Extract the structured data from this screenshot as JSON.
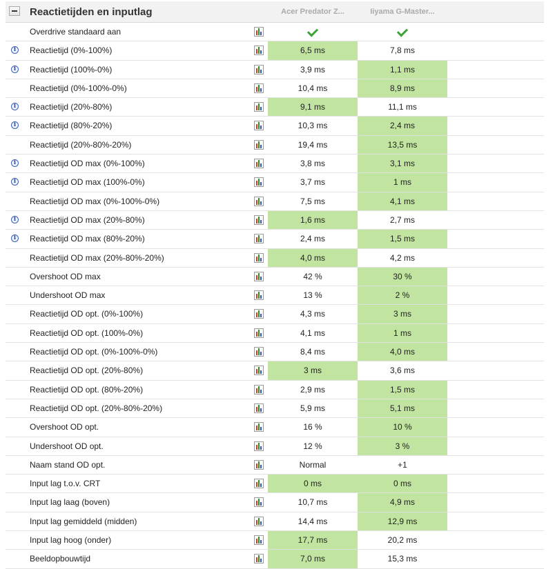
{
  "section": {
    "title": "Reactietijden en inputlag",
    "columns": [
      "Acer Predator Z...",
      "Iiyama G-Master..."
    ]
  },
  "rows": [
    {
      "label": "Overdrive standaard aan",
      "info": false,
      "a": "",
      "b": "",
      "a_check": true,
      "b_check": true,
      "best": ""
    },
    {
      "label": "Reactietijd (0%-100%)",
      "info": true,
      "a": "6,5 ms",
      "b": "7,8 ms",
      "best": "a"
    },
    {
      "label": "Reactietijd (100%-0%)",
      "info": true,
      "a": "3,9 ms",
      "b": "1,1 ms",
      "best": "b"
    },
    {
      "label": "Reactietijd (0%-100%-0%)",
      "info": false,
      "a": "10,4 ms",
      "b": "8,9 ms",
      "best": "b"
    },
    {
      "label": "Reactietijd (20%-80%)",
      "info": true,
      "a": "9,1 ms",
      "b": "11,1 ms",
      "best": "a"
    },
    {
      "label": "Reactietijd (80%-20%)",
      "info": true,
      "a": "10,3 ms",
      "b": "2,4 ms",
      "best": "b"
    },
    {
      "label": "Reactietijd (20%-80%-20%)",
      "info": false,
      "a": "19,4 ms",
      "b": "13,5 ms",
      "best": "b"
    },
    {
      "label": "Reactietijd OD max (0%-100%)",
      "info": true,
      "a": "3,8 ms",
      "b": "3,1 ms",
      "best": "b"
    },
    {
      "label": "Reactietijd OD max (100%-0%)",
      "info": true,
      "a": "3,7 ms",
      "b": "1 ms",
      "best": "b"
    },
    {
      "label": "Reactietijd OD max (0%-100%-0%)",
      "info": false,
      "a": "7,5 ms",
      "b": "4,1 ms",
      "best": "b"
    },
    {
      "label": "Reactietijd OD max (20%-80%)",
      "info": true,
      "a": "1,6 ms",
      "b": "2,7 ms",
      "best": "a"
    },
    {
      "label": "Reactietijd OD max (80%-20%)",
      "info": true,
      "a": "2,4 ms",
      "b": "1,5 ms",
      "best": "b"
    },
    {
      "label": "Reactietijd OD max (20%-80%-20%)",
      "info": false,
      "a": "4,0 ms",
      "b": "4,2 ms",
      "best": "a"
    },
    {
      "label": "Overshoot OD max",
      "info": false,
      "a": "42 %",
      "b": "30 %",
      "best": "b"
    },
    {
      "label": "Undershoot OD max",
      "info": false,
      "a": "13 %",
      "b": "2 %",
      "best": "b"
    },
    {
      "label": "Reactietijd OD opt. (0%-100%)",
      "info": false,
      "a": "4,3 ms",
      "b": "3 ms",
      "best": "b"
    },
    {
      "label": "Reactietijd OD opt. (100%-0%)",
      "info": false,
      "a": "4,1 ms",
      "b": "1 ms",
      "best": "b"
    },
    {
      "label": "Reactietijd OD opt. (0%-100%-0%)",
      "info": false,
      "a": "8,4 ms",
      "b": "4,0 ms",
      "best": "b"
    },
    {
      "label": "Reactietijd OD opt. (20%-80%)",
      "info": false,
      "a": "3 ms",
      "b": "3,6 ms",
      "best": "a"
    },
    {
      "label": "Reactietijd OD opt. (80%-20%)",
      "info": false,
      "a": "2,9 ms",
      "b": "1,5 ms",
      "best": "b"
    },
    {
      "label": "Reactietijd OD opt. (20%-80%-20%)",
      "info": false,
      "a": "5,9 ms",
      "b": "5,1 ms",
      "best": "b"
    },
    {
      "label": "Overshoot OD opt.",
      "info": false,
      "a": "16 %",
      "b": "10 %",
      "best": "b"
    },
    {
      "label": "Undershoot OD opt.",
      "info": false,
      "a": "12 %",
      "b": "3 %",
      "best": "b"
    },
    {
      "label": "Naam stand OD opt.",
      "info": false,
      "a": "Normal",
      "b": "+1",
      "best": ""
    },
    {
      "label": "Input lag t.o.v. CRT",
      "info": false,
      "a": "0 ms",
      "b": "0 ms",
      "best": "both"
    },
    {
      "label": "Input lag laag (boven)",
      "info": false,
      "a": "10,7 ms",
      "b": "4,9 ms",
      "best": "b"
    },
    {
      "label": "Input lag gemiddeld (midden)",
      "info": false,
      "a": "14,4 ms",
      "b": "12,9 ms",
      "best": "b"
    },
    {
      "label": "Input lag hoog (onder)",
      "info": false,
      "a": "17,7 ms",
      "b": "20,2 ms",
      "best": "a"
    },
    {
      "label": "Beeldopbouwtijd",
      "info": false,
      "a": "7,0 ms",
      "b": "15,3 ms",
      "best": "a"
    }
  ],
  "colors": {
    "best_highlight": "#c1e4a0",
    "check": "#3da335",
    "info_icon": "#3a5fb4"
  },
  "icons": {
    "info": "info-icon",
    "chart": "bar-chart-icon",
    "check": "checkmark-icon",
    "collapse": "minus-icon"
  }
}
